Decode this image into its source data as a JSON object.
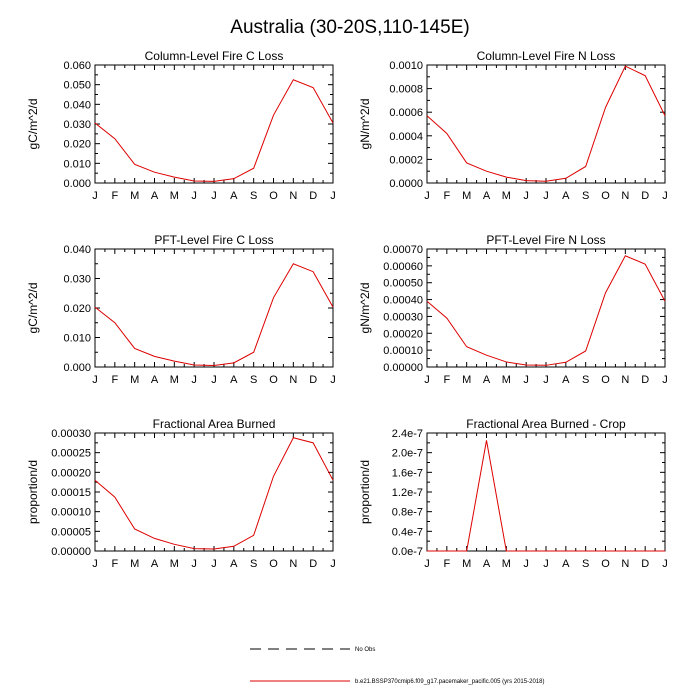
{
  "title": "Australia (30-20S,110-145E)",
  "legend": {
    "entries": [
      {
        "label": "No Obs",
        "style": "dashed",
        "color": "#000000"
      },
      {
        "label": "b.e21.BSSP370cmip6.f09_g17.pacemaker_pacific.005 (yrs 2015-2018)",
        "style": "solid",
        "color": "#dd0000"
      }
    ]
  },
  "chart_data": [
    {
      "type": "line",
      "title": "Column-Level Fire C Loss",
      "ylabel": "gC/m^2/d",
      "categories": [
        "J",
        "F",
        "M",
        "A",
        "M",
        "J",
        "J",
        "A",
        "S",
        "O",
        "N",
        "D",
        "J"
      ],
      "ylim": [
        0,
        0.06
      ],
      "yticks": [
        0,
        0.01,
        0.02,
        0.03,
        0.04,
        0.05,
        0.06
      ],
      "ytick_labels": [
        "0.000",
        "0.010",
        "0.020",
        "0.030",
        "0.040",
        "0.050",
        "0.060"
      ],
      "series": [
        {
          "color": "#dd0000",
          "values": [
            0.0305,
            0.0225,
            0.0095,
            0.0055,
            0.003,
            0.001,
            0.0008,
            0.0022,
            0.0075,
            0.0345,
            0.0525,
            0.0485,
            0.0305
          ]
        }
      ]
    },
    {
      "type": "line",
      "title": "Column-Level Fire N Loss",
      "ylabel": "gN/m^2/d",
      "categories": [
        "J",
        "F",
        "M",
        "A",
        "M",
        "J",
        "J",
        "A",
        "S",
        "O",
        "N",
        "D",
        "J"
      ],
      "ylim": [
        0,
        0.001
      ],
      "yticks": [
        0,
        0.0002,
        0.0004,
        0.0006,
        0.0008,
        0.001
      ],
      "ytick_labels": [
        "0.0000",
        "0.0002",
        "0.0004",
        "0.0006",
        "0.0008",
        "0.0010"
      ],
      "series": [
        {
          "color": "#dd0000",
          "values": [
            0.00057,
            0.00042,
            0.00017,
            0.0001,
            5e-05,
            2e-05,
            1.5e-05,
            4e-05,
            0.00014,
            0.00064,
            0.00099,
            0.00091,
            0.00057
          ]
        }
      ]
    },
    {
      "type": "line",
      "title": "PFT-Level Fire C Loss",
      "ylabel": "gC/m^2/d",
      "categories": [
        "J",
        "F",
        "M",
        "A",
        "M",
        "J",
        "J",
        "A",
        "S",
        "O",
        "N",
        "D",
        "J"
      ],
      "ylim": [
        0,
        0.04
      ],
      "yticks": [
        0,
        0.01,
        0.02,
        0.03,
        0.04
      ],
      "ytick_labels": [
        "0.000",
        "0.010",
        "0.020",
        "0.030",
        "0.040"
      ],
      "series": [
        {
          "color": "#dd0000",
          "values": [
            0.0203,
            0.015,
            0.0063,
            0.0036,
            0.002,
            0.0007,
            0.0005,
            0.0014,
            0.005,
            0.0235,
            0.035,
            0.0323,
            0.0203
          ]
        }
      ]
    },
    {
      "type": "line",
      "title": "PFT-Level Fire N Loss",
      "ylabel": "gN/m^2/d",
      "categories": [
        "J",
        "F",
        "M",
        "A",
        "M",
        "J",
        "J",
        "A",
        "S",
        "O",
        "N",
        "D",
        "J"
      ],
      "ylim": [
        0,
        0.0007
      ],
      "yticks": [
        0,
        0.0001,
        0.0002,
        0.0003,
        0.0004,
        0.0005,
        0.0006,
        0.0007
      ],
      "ytick_labels": [
        "0.00000",
        "0.00010",
        "0.00020",
        "0.00030",
        "0.00040",
        "0.00050",
        "0.00060",
        "0.00070"
      ],
      "series": [
        {
          "color": "#dd0000",
          "values": [
            0.00039,
            0.00029,
            0.00012,
            7e-05,
            3e-05,
            1.2e-05,
            1e-05,
            2.8e-05,
            9.5e-05,
            0.00044,
            0.00066,
            0.00061,
            0.00039
          ]
        }
      ]
    },
    {
      "type": "line",
      "title": "Fractional Area Burned",
      "ylabel": "proportion/d",
      "categories": [
        "J",
        "F",
        "M",
        "A",
        "M",
        "J",
        "J",
        "A",
        "S",
        "O",
        "N",
        "D",
        "J"
      ],
      "ylim": [
        0,
        0.0003
      ],
      "yticks": [
        0,
        5e-05,
        0.0001,
        0.00015,
        0.0002,
        0.00025,
        0.0003
      ],
      "ytick_labels": [
        "0.00000",
        "0.00005",
        "0.00010",
        "0.00015",
        "0.00020",
        "0.00025",
        "0.00030"
      ],
      "series": [
        {
          "color": "#dd0000",
          "values": [
            0.00018,
            0.000137,
            5.6e-05,
            3.2e-05,
            1.7e-05,
            6e-06,
            5e-06,
            1.2e-05,
            4e-05,
            0.00019,
            0.000288,
            0.000275,
            0.00018
          ]
        }
      ]
    },
    {
      "type": "line",
      "title": "Fractional Area Burned - Crop",
      "ylabel": "proportion/d",
      "categories": [
        "J",
        "F",
        "M",
        "A",
        "M",
        "J",
        "J",
        "A",
        "S",
        "O",
        "N",
        "D",
        "J"
      ],
      "ylim": [
        0,
        2.4e-07
      ],
      "yticks": [
        0,
        4e-08,
        8e-08,
        1.2e-07,
        1.6e-07,
        2e-07,
        2.4e-07
      ],
      "ytick_labels": [
        "0.0e-7",
        "0.4e-7",
        "0.8e-7",
        "1.2e-7",
        "1.6e-7",
        "2.0e-7",
        "2.4e-7"
      ],
      "series": [
        {
          "color": "#dd0000",
          "values": [
            0,
            0,
            0,
            2.25e-07,
            0,
            0,
            0,
            0,
            0,
            0,
            0,
            0,
            0
          ]
        }
      ]
    }
  ]
}
